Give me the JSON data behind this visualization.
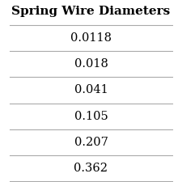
{
  "title": "Spring Wire Diameters",
  "values": [
    "0.0118",
    "0.018",
    "0.041",
    "0.105",
    "0.207",
    "0.362"
  ],
  "background_color": "#ffffff",
  "line_color": "#aaaaaa",
  "title_fontsize": 11,
  "cell_fontsize": 10.5
}
